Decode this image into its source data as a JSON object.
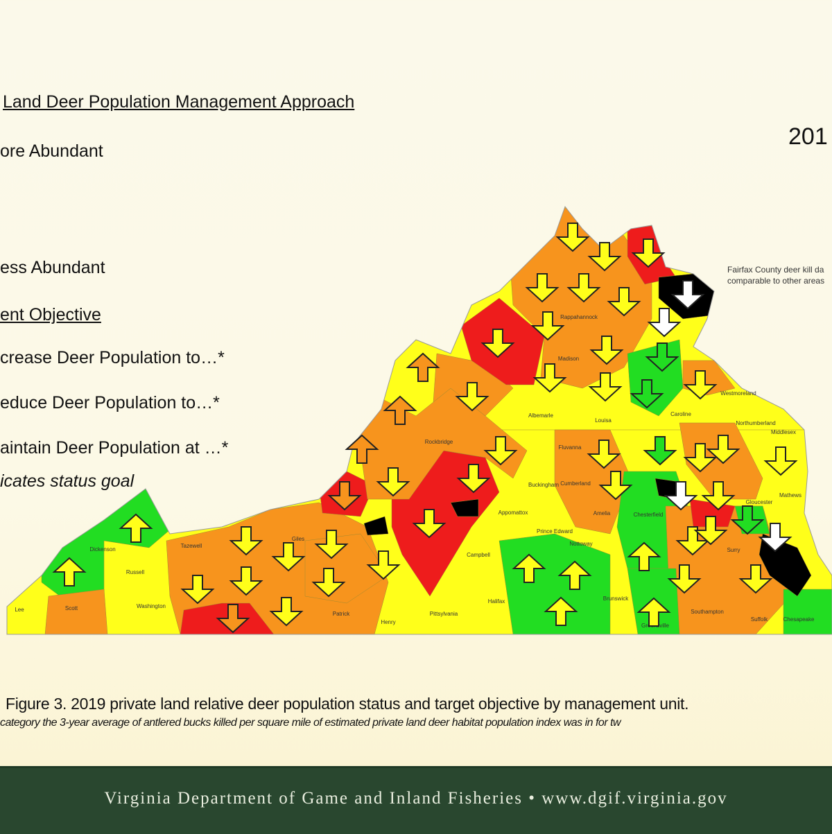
{
  "legend": {
    "title": "Land Deer Population Management Approach",
    "more": "ore Abundant",
    "less": "ess Abundant",
    "objective_title": "ent Objective",
    "increase": "crease Deer Population to…*",
    "reduce": "educe Deer Population to…*",
    "maintain": "aintain Deer Population at …*",
    "footnote": "icates status goal"
  },
  "year": "201",
  "fairfax_note": [
    "Fairfax County deer kill da",
    "comparable to other areas"
  ],
  "counties": [
    "Dickenson",
    "Russell",
    "Tazewell",
    "Lee",
    "Scott",
    "Washington",
    "Giles",
    "Patrick",
    "Henry",
    "Pittsylvania",
    "Halifax",
    "Campbell",
    "Appomattox",
    "Buckingham",
    "Prince Edward",
    "Nottoway",
    "Cumberland",
    "Amelia",
    "Chesterfield",
    "Brunswick",
    "Greensville",
    "Southampton",
    "Surry",
    "Suffolk",
    "Chesapeake",
    "Albemarle",
    "Fluvanna",
    "Louisa",
    "Caroline",
    "Madison",
    "Rappahannock",
    "Rockbridge",
    "Westmoreland",
    "Northumberland",
    "Middlesex",
    "Gloucester",
    "Mathews"
  ],
  "caption": "Figure 3.  2019 private land relative deer population status and target objective by management unit.",
  "note": "category the 3-year average of antlered bucks killed per square mile of estimated  private land deer habitat population index was in for tw",
  "footer": "Virginia Department of Game and Inland Fisheries  •  www.dgif.virginia.gov",
  "colors": {
    "yellow": "#ffff1a",
    "orange": "#f7941d",
    "red": "#ee1c1c",
    "green": "#22dd22",
    "black": "#000000",
    "footer": "#29472f"
  }
}
